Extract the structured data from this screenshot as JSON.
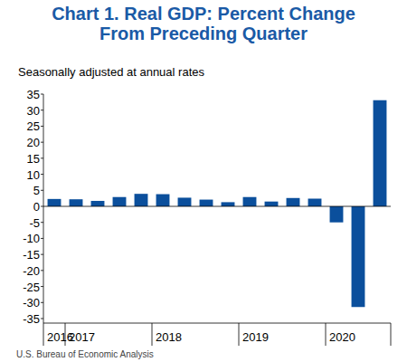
{
  "chart_data": {
    "type": "bar",
    "title": "Chart 1. Real GDP: Percent Change From Preceding Quarter",
    "subtitle": "Seasonally adjusted at annual rates",
    "source": "U.S. Bureau of Economic Analysis",
    "categories": [
      "2016",
      "2017",
      null,
      null,
      null,
      "2018",
      null,
      null,
      null,
      "2019",
      null,
      null,
      null,
      "2020",
      null,
      null
    ],
    "values": [
      2.3,
      2.2,
      1.7,
      2.9,
      3.9,
      3.8,
      2.7,
      2.1,
      1.3,
      2.9,
      1.5,
      2.6,
      2.4,
      -5.0,
      -31.4,
      33.1
    ],
    "color": "#0b4f9c",
    "ylim": [
      -35,
      35
    ],
    "yticks": [
      -35,
      -30,
      -25,
      -20,
      -15,
      -10,
      -5,
      0,
      5,
      10,
      15,
      20,
      25,
      30,
      35
    ],
    "grid": false
  }
}
